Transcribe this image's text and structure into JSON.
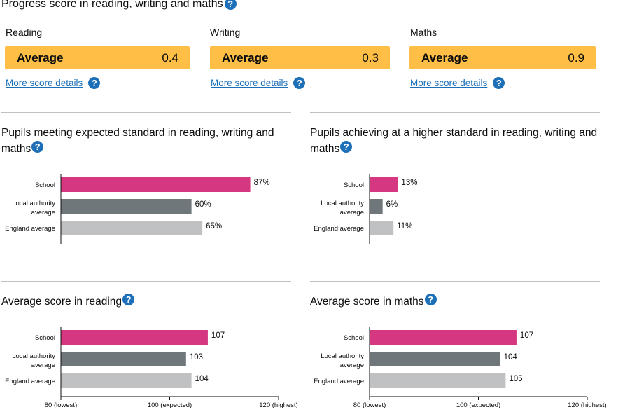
{
  "title": "Progress score in reading, writing and maths",
  "progress_scores": [
    {
      "subject": "Reading",
      "band": "Average",
      "score": "0.4",
      "link": "More score details"
    },
    {
      "subject": "Writing",
      "band": "Average",
      "score": "0.3",
      "link": "More score details"
    },
    {
      "subject": "Maths",
      "band": "Average",
      "score": "0.9",
      "link": "More score details"
    }
  ],
  "help_icon": "question-mark-icon",
  "colors": {
    "band_average": "#ffbf47",
    "link": "#1d70b8",
    "school": "#d53880",
    "local_authority": "#6f777b",
    "england": "#bfc1c3"
  },
  "sections": {
    "expected": {
      "title": "Pupils meeting expected standard in reading, writing and maths"
    },
    "higher": {
      "title": "Pupils achieving at a higher standard in reading, writing and maths"
    },
    "reading": {
      "title": "Average score in reading"
    },
    "maths": {
      "title": "Average score in maths"
    }
  },
  "chart_data": [
    {
      "id": "expected",
      "type": "bar",
      "orientation": "horizontal",
      "categories": [
        "School",
        "Local authority average",
        "England average"
      ],
      "values": [
        87,
        60,
        65
      ],
      "value_labels": [
        "87%",
        "60%",
        "65%"
      ],
      "xlim": [
        0,
        100
      ]
    },
    {
      "id": "higher",
      "type": "bar",
      "orientation": "horizontal",
      "categories": [
        "School",
        "Local authority average",
        "England average"
      ],
      "values": [
        13,
        6,
        11
      ],
      "value_labels": [
        "13%",
        "6%",
        "11%"
      ],
      "xlim": [
        0,
        100
      ]
    },
    {
      "id": "reading",
      "type": "bar",
      "orientation": "horizontal",
      "categories": [
        "School",
        "Local authority average",
        "England average"
      ],
      "values": [
        107,
        103,
        104
      ],
      "value_labels": [
        "107",
        "103",
        "104"
      ],
      "xlim": [
        80,
        120
      ],
      "ticks": [
        80,
        100,
        120
      ],
      "tick_labels": [
        "80 (lowest)",
        "100 (expected)",
        "120 (highest)"
      ]
    },
    {
      "id": "maths",
      "type": "bar",
      "orientation": "horizontal",
      "categories": [
        "School",
        "Local authority average",
        "England average"
      ],
      "values": [
        107,
        104,
        105
      ],
      "value_labels": [
        "107",
        "104",
        "105"
      ],
      "xlim": [
        80,
        120
      ],
      "ticks": [
        80,
        100,
        120
      ],
      "tick_labels": [
        "80 (lowest)",
        "100 (expected)",
        "120 (highest)"
      ]
    }
  ]
}
